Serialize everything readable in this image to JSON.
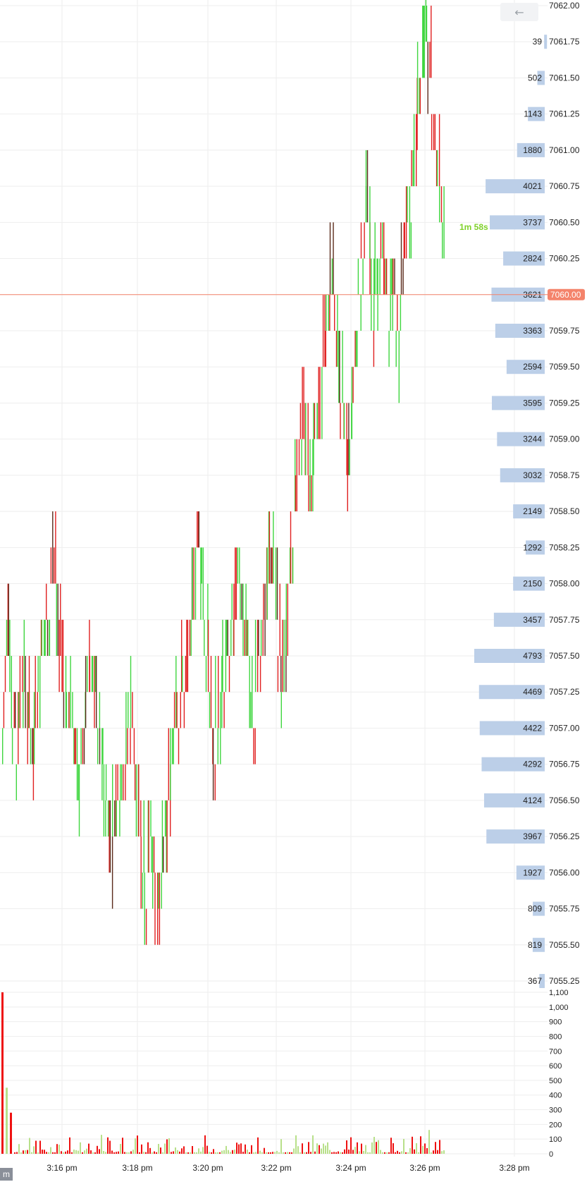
{
  "toolbar": {
    "back_icon": "←"
  },
  "corner_label": "m",
  "countdown": "1m 58s",
  "last_price_label": "7060.00",
  "colors": {
    "up": "#3fd63f",
    "down": "#e02020",
    "dark": "#5a2a1a",
    "profile_bar": "#bccfe8",
    "last_price": "#f4836b",
    "grid": "#eeeeee",
    "vol_up": "#b8e08a",
    "vol_down": "#ee1111"
  },
  "chart_data": {
    "type": "bar",
    "price_axis": {
      "min": 7055.25,
      "max": 7062.0,
      "tick_step": 0.25,
      "tick_labels": [
        "7062.00",
        "7061.75",
        "7061.50",
        "7061.25",
        "7061.00",
        "7060.75",
        "7060.50",
        "7060.25",
        "7060.00",
        "7059.75",
        "7059.50",
        "7059.25",
        "7059.00",
        "7058.75",
        "7058.50",
        "7058.25",
        "7058.00",
        "7057.75",
        "7057.50",
        "7057.25",
        "7057.00",
        "7056.75",
        "7056.50",
        "7056.25",
        "7056.00",
        "7055.75",
        "7055.50",
        "7055.25"
      ]
    },
    "volume_profile": {
      "prices": [
        7061.75,
        7061.5,
        7061.25,
        7061.0,
        7060.75,
        7060.5,
        7060.25,
        7060.0,
        7059.75,
        7059.5,
        7059.25,
        7059.0,
        7058.75,
        7058.5,
        7058.25,
        7058.0,
        7057.75,
        7057.5,
        7057.25,
        7057.0,
        7056.75,
        7056.5,
        7056.25,
        7056.0,
        7055.75,
        7055.5,
        7055.25
      ],
      "labels": [
        "39",
        "502",
        "1143",
        "1880",
        "4021",
        "3737",
        "2824",
        "3621",
        "3363",
        "2594",
        "3595",
        "3244",
        "3032",
        "2149",
        "1292",
        "2150",
        "3457",
        "4793",
        "4469",
        "4422",
        "4292",
        "4124",
        "3967",
        "1927",
        "809",
        "819",
        "367"
      ],
      "values": [
        39,
        502,
        1143,
        1880,
        4021,
        3737,
        2824,
        3621,
        3363,
        2594,
        3595,
        3244,
        3032,
        2149,
        1292,
        2150,
        3457,
        4793,
        4469,
        4422,
        4292,
        4124,
        3967,
        1927,
        809,
        819,
        367
      ]
    },
    "price_path": {
      "x_minutes_from_315": [
        0,
        1,
        2,
        3,
        4,
        5,
        6,
        7,
        8,
        9,
        10,
        11,
        12,
        13,
        14,
        15,
        16,
        17,
        18,
        19,
        20,
        21,
        22,
        23,
        24,
        25,
        26,
        27,
        28,
        29,
        30,
        31,
        32,
        33,
        34,
        35,
        36,
        37,
        38,
        39,
        40,
        41,
        42,
        43,
        44,
        45,
        46,
        47,
        48,
        49,
        50,
        51,
        52,
        53,
        54,
        55,
        56,
        57,
        58,
        59,
        60,
        61,
        62,
        63,
        64,
        65,
        66,
        67,
        68,
        69,
        70,
        71,
        72,
        73,
        74,
        75,
        76,
        77,
        78,
        79,
        80,
        81,
        82,
        83,
        84,
        85,
        86,
        87,
        88,
        89,
        90,
        91,
        92,
        93,
        94,
        95,
        96,
        97,
        98,
        99,
        100,
        101,
        102,
        103,
        104,
        105,
        106,
        107,
        108,
        109,
        110,
        111,
        112,
        113,
        114,
        115,
        116,
        117,
        118,
        119,
        120,
        121,
        122,
        123,
        124,
        125,
        126,
        127,
        128,
        129,
        130,
        131,
        132,
        133,
        134,
        135,
        136,
        137,
        138,
        139,
        140,
        141,
        142,
        143,
        144,
        145,
        146,
        147,
        148,
        149,
        150,
        151,
        152,
        153,
        154,
        155,
        156,
        157,
        158,
        159,
        160,
        161,
        162,
        163,
        164,
        165,
        166,
        167,
        168,
        169,
        170,
        171,
        172,
        173,
        174,
        175,
        176,
        177,
        178,
        179,
        180,
        181,
        182,
        183,
        184,
        185,
        186,
        187,
        188,
        189,
        190,
        191,
        192,
        193,
        194,
        195,
        196,
        197,
        198,
        199,
        200,
        201,
        202,
        203,
        204,
        205,
        206,
        207,
        208,
        209,
        210,
        211,
        212,
        213,
        214,
        215,
        216,
        217,
        218,
        219,
        220,
        221,
        222,
        223,
        224,
        225,
        226,
        227,
        228,
        229,
        230,
        231,
        232,
        233,
        234,
        235,
        236,
        237,
        238,
        239,
        240,
        241,
        242,
        243,
        244,
        245,
        246,
        247,
        248,
        249,
        250,
        251,
        252,
        253,
        254,
        255,
        256,
        257,
        258,
        259,
        260,
        261,
        262,
        263,
        264,
        265,
        266,
        267,
        268,
        269,
        270,
        271,
        272,
        273,
        274,
        275,
        276,
        277,
        278,
        279,
        280,
        281,
        282,
        283,
        284,
        285,
        286,
        287,
        288,
        289,
        290,
        291,
        292,
        293,
        294,
        295,
        296,
        297,
        298,
        299,
        300,
        301,
        302,
        303,
        304,
        305,
        306,
        307,
        308,
        309,
        310,
        311,
        312,
        313,
        314,
        315,
        316,
        317,
        318,
        319,
        320,
        321,
        322,
        323,
        324,
        325,
        326,
        327,
        328,
        329,
        330,
        331,
        332,
        333,
        334,
        335,
        336,
        337,
        338,
        339,
        340,
        341,
        342,
        343,
        344,
        345,
        346,
        347,
        348,
        349,
        350,
        351,
        352,
        353,
        354,
        355,
        356,
        357,
        358,
        359,
        360,
        361,
        362,
        363,
        364,
        365,
        366,
        367,
        368,
        369,
        370,
        371,
        372,
        373,
        374,
        375,
        376,
        377,
        378,
        379,
        380,
        381,
        382,
        383,
        384,
        385,
        386,
        387,
        388,
        389,
        390,
        391,
        392,
        393,
        394,
        395,
        396,
        397,
        398,
        399
      ],
      "anchors": [
        [
          0,
          7057.0
        ],
        [
          1,
          7057.5
        ],
        [
          2,
          7057.0
        ],
        [
          3,
          7056.75
        ],
        [
          4,
          7057.25
        ],
        [
          5,
          7057.0
        ],
        [
          6,
          7056.75
        ],
        [
          7,
          7057.25
        ],
        [
          8,
          7057.5
        ],
        [
          9,
          7057.75
        ],
        [
          10,
          7058.0
        ],
        [
          11,
          7057.5
        ],
        [
          12,
          7057.0
        ],
        [
          13,
          7057.25
        ],
        [
          14,
          7056.75
        ],
        [
          15,
          7056.5
        ],
        [
          16,
          7057.0
        ],
        [
          17,
          7057.5
        ],
        [
          18,
          7057.25
        ],
        [
          19,
          7056.75
        ],
        [
          20,
          7056.5
        ],
        [
          21,
          7056.0
        ],
        [
          22,
          7056.25
        ],
        [
          23,
          7056.5
        ],
        [
          24,
          7056.75
        ],
        [
          25,
          7057.0
        ],
        [
          26,
          7056.5
        ],
        [
          27,
          7056.0
        ],
        [
          28,
          7055.75
        ],
        [
          29,
          7056.25
        ],
        [
          30,
          7055.5
        ],
        [
          31,
          7056.0
        ],
        [
          32,
          7056.25
        ],
        [
          33,
          7056.75
        ],
        [
          34,
          7057.0
        ],
        [
          35,
          7057.25
        ],
        [
          36,
          7057.5
        ],
        [
          37,
          7057.75
        ],
        [
          38,
          7058.25
        ],
        [
          39,
          7057.75
        ],
        [
          40,
          7057.25
        ],
        [
          41,
          7056.75
        ],
        [
          42,
          7057.0
        ],
        [
          43,
          7057.25
        ],
        [
          44,
          7057.5
        ],
        [
          45,
          7057.75
        ],
        [
          46,
          7058.0
        ],
        [
          47,
          7057.75
        ],
        [
          48,
          7057.25
        ],
        [
          49,
          7057.0
        ],
        [
          50,
          7057.5
        ],
        [
          51,
          7057.75
        ],
        [
          52,
          7058.25
        ],
        [
          53,
          7057.75
        ],
        [
          54,
          7057.25
        ],
        [
          55,
          7057.5
        ],
        [
          56,
          7058.0
        ],
        [
          57,
          7058.5
        ],
        [
          58,
          7059.0
        ],
        [
          59,
          7058.75
        ],
        [
          60,
          7058.5
        ],
        [
          61,
          7059.0
        ],
        [
          62,
          7059.25
        ],
        [
          63,
          7059.75
        ],
        [
          64,
          7060.0
        ],
        [
          65,
          7059.5
        ],
        [
          66,
          7059.25
        ],
        [
          67,
          7058.75
        ],
        [
          68,
          7059.25
        ],
        [
          69,
          7059.75
        ],
        [
          70,
          7060.25
        ],
        [
          71,
          7060.5
        ],
        [
          72,
          7059.75
        ],
        [
          73,
          7060.0
        ],
        [
          74,
          7060.25
        ],
        [
          75,
          7059.75
        ],
        [
          76,
          7060.0
        ],
        [
          77,
          7059.5
        ],
        [
          78,
          7060.25
        ],
        [
          79,
          7060.5
        ],
        [
          80,
          7060.75
        ],
        [
          81,
          7061.25
        ],
        [
          82,
          7061.75
        ],
        [
          83,
          7061.5
        ],
        [
          84,
          7061.0
        ],
        [
          85,
          7060.5
        ],
        [
          86,
          7060.0
        ]
      ]
    },
    "volume_axis": {
      "min": 0,
      "max": 1100,
      "tick_labels": [
        "1,100",
        "1,000",
        "900",
        "800",
        "700",
        "600",
        "500",
        "400",
        "300",
        "200",
        "100",
        "0"
      ],
      "tick_values": [
        1100,
        1000,
        900,
        800,
        700,
        600,
        500,
        400,
        300,
        200,
        100,
        0
      ]
    },
    "time_axis": {
      "tick_labels": [
        "3:16 pm",
        "3:18 pm",
        "3:20 pm",
        "3:22 pm",
        "3:24 pm",
        "3:26 pm",
        "3:28 pm"
      ]
    }
  }
}
